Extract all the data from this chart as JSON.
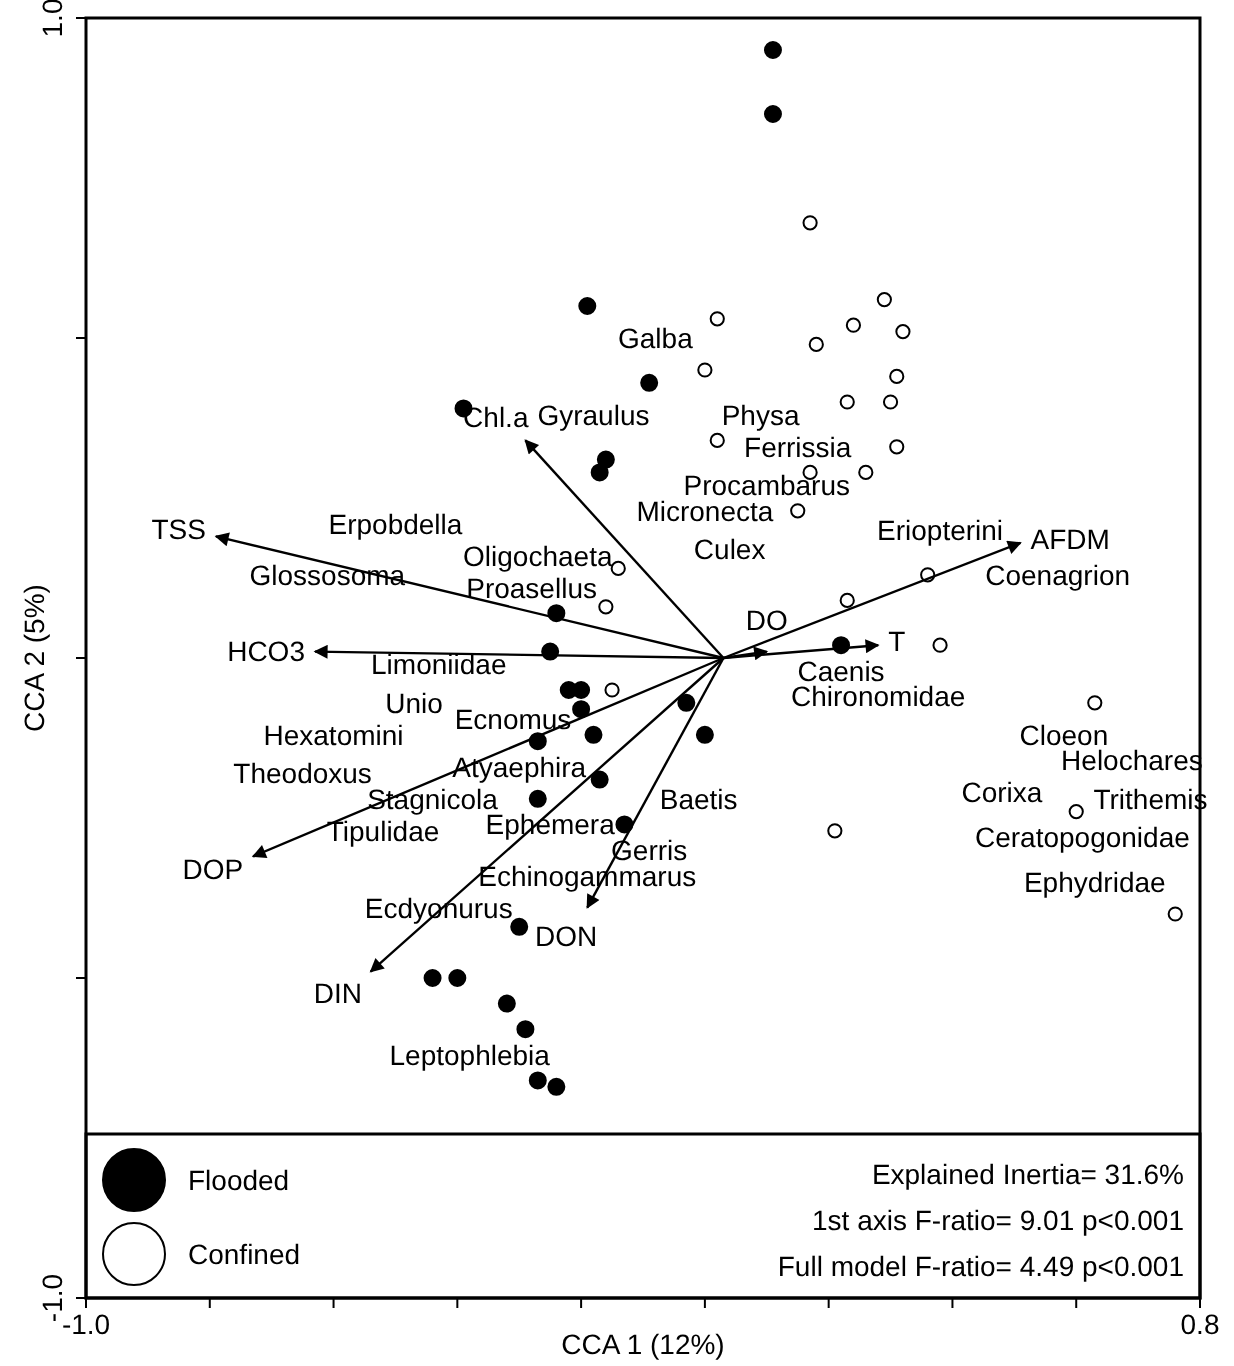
{
  "chart_data": {
    "type": "scatter",
    "xlabel": "CCA 1 (12%)",
    "ylabel": "CCA 2 (5%)",
    "xlim": [
      -1.0,
      0.8
    ],
    "ylim": [
      -1.0,
      1.0
    ],
    "xticks": [
      {
        "value": -1.0,
        "label": "-1.0"
      },
      {
        "value": -0.8,
        "label": null
      },
      {
        "value": -0.6,
        "label": null
      },
      {
        "value": -0.4,
        "label": null
      },
      {
        "value": -0.2,
        "label": null
      },
      {
        "value": 0,
        "label": null
      },
      {
        "value": 0.2,
        "label": null
      },
      {
        "value": 0.4,
        "label": null
      },
      {
        "value": 0.6,
        "label": null
      },
      {
        "value": 0.8,
        "label": "0.8"
      }
    ],
    "yticks": [
      {
        "value": -1.0,
        "label": "-1.0"
      },
      {
        "value": -0.5,
        "label": null
      },
      {
        "value": 0,
        "label": null
      },
      {
        "value": 0.5,
        "label": null
      },
      {
        "value": 1.0,
        "label": "1.0"
      }
    ],
    "grid": false,
    "legend": "bottom left",
    "marker": "circle",
    "series": [
      {
        "name": "Flooded",
        "color": "#000000",
        "x": [
          -0.19,
          -0.09,
          -0.39,
          -0.16,
          -0.17,
          -0.24,
          -0.25,
          0.11,
          0.11,
          0.22,
          -0.22,
          -0.2,
          -0.2,
          -0.27,
          -0.18,
          -0.17,
          -0.27,
          -0.13,
          -0.3,
          -0.44,
          -0.4,
          -0.32,
          -0.29,
          -0.27,
          -0.24,
          -0.03,
          0.0
        ],
        "values": [
          0.55,
          0.43,
          0.39,
          0.31,
          0.29,
          0.07,
          0.01,
          0.95,
          0.85,
          0.02,
          -0.05,
          -0.05,
          -0.08,
          -0.13,
          -0.12,
          -0.19,
          -0.22,
          -0.26,
          -0.42,
          -0.5,
          -0.5,
          -0.54,
          -0.58,
          -0.66,
          -0.67,
          -0.07,
          -0.12
        ]
      },
      {
        "name": "Confined",
        "color": "#ffffff",
        "x": [
          0.17,
          0.29,
          0.02,
          0.24,
          0.18,
          0.32,
          0.0,
          0.31,
          0.23,
          0.3,
          0.02,
          0.31,
          0.17,
          0.26,
          0.15,
          -0.14,
          0.36,
          0.23,
          0.38,
          -0.16,
          -0.15,
          0.63,
          0.6,
          0.21,
          0.76
        ],
        "values": [
          0.68,
          0.56,
          0.53,
          0.52,
          0.49,
          0.51,
          0.45,
          0.44,
          0.4,
          0.4,
          0.34,
          0.33,
          0.29,
          0.29,
          0.23,
          0.14,
          0.13,
          0.09,
          0.02,
          0.08,
          -0.05,
          -0.07,
          -0.24,
          -0.27,
          -0.4
        ]
      },
      {
        "name": "TSS",
        "type": "line",
        "marker": "none",
        "color": "#000000",
        "x": [
          0.03,
          -0.79
        ],
        "values": [
          0.0,
          0.19
        ]
      },
      {
        "name": "Chl.a",
        "type": "line",
        "marker": "none",
        "color": "#000000",
        "x": [
          0.03,
          -0.29
        ],
        "values": [
          0.0,
          0.34
        ]
      },
      {
        "name": "HCO3",
        "type": "line",
        "marker": "none",
        "color": "#000000",
        "x": [
          0.03,
          -0.63
        ],
        "values": [
          0.0,
          0.01
        ]
      },
      {
        "name": "DOP",
        "type": "line",
        "marker": "none",
        "color": "#000000",
        "x": [
          0.03,
          -0.73
        ],
        "values": [
          0.0,
          -0.31
        ]
      },
      {
        "name": "DIN",
        "type": "line",
        "marker": "none",
        "color": "#000000",
        "x": [
          0.03,
          -0.54
        ],
        "values": [
          0.0,
          -0.49
        ]
      },
      {
        "name": "DON",
        "type": "line",
        "marker": "none",
        "color": "#000000",
        "x": [
          0.03,
          -0.19
        ],
        "values": [
          0.0,
          -0.39
        ]
      },
      {
        "name": "AFDM",
        "type": "line",
        "marker": "none",
        "color": "#000000",
        "x": [
          0.03,
          0.51
        ],
        "values": [
          0.0,
          0.18
        ]
      },
      {
        "name": "DO",
        "type": "line",
        "marker": "none",
        "color": "#000000",
        "x": [
          0.03,
          0.1
        ],
        "values": [
          0.0,
          0.01
        ]
      },
      {
        "name": "T",
        "type": "line",
        "marker": "none",
        "color": "#000000",
        "x": [
          0.03,
          0.28
        ],
        "values": [
          0.0,
          0.02
        ]
      }
    ],
    "annotations": [
      "Galba",
      "Physa",
      "Gyraulus",
      "Ferrissia",
      "Procambarus",
      "Micronecta",
      "Culex",
      "Eriopterini",
      "Coenagrion",
      "Caenis",
      "Chironomidae",
      "Cloeon",
      "Helochares",
      "Corixa",
      "Trithemis",
      "Ceratopogonidae",
      "Ephydridae",
      "Baetis",
      "Ephemera",
      "Gerris",
      "Echinogammarus",
      "Ecdyonurus",
      "Leptophlebia",
      "Tipulidae",
      "Stagnicola",
      "Theodoxus",
      "Atyaephira",
      "Hexatomini",
      "Unio",
      "Ecnomus",
      "Limoniidae",
      "Glossosoma",
      "Proasellus",
      "Oligochaeta",
      "Erpobdella",
      "Explained Inertia= 31.6%",
      "1st axis F-ratio= 9.01 p<0.001",
      "Full model F-ratio= 4.49 p<0.001"
    ]
  }
}
